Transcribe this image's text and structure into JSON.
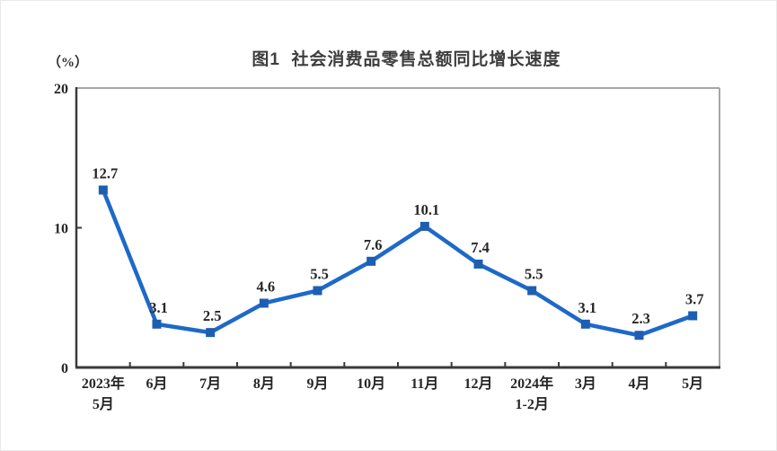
{
  "page": {
    "title": "图1  社会消费品零售总额同比增长速度",
    "unit_label": "（%）"
  },
  "chart_data": {
    "type": "line",
    "title": "图1  社会消费品零售总额同比增长速度",
    "ylabel": "（%）",
    "xlabel": "",
    "categories": [
      [
        "2023年",
        "5月"
      ],
      [
        "6月"
      ],
      [
        "7月"
      ],
      [
        "8月"
      ],
      [
        "9月"
      ],
      [
        "10月"
      ],
      [
        "11月"
      ],
      [
        "12月"
      ],
      [
        "2024年",
        "1-2月"
      ],
      [
        "3月"
      ],
      [
        "4月"
      ],
      [
        "5月"
      ]
    ],
    "series": [
      {
        "name": "社会消费品零售总额同比增长速度",
        "values": [
          12.7,
          3.1,
          2.5,
          4.6,
          5.5,
          7.6,
          10.1,
          7.4,
          5.5,
          3.1,
          2.3,
          3.7
        ],
        "data_labels": [
          "12.7",
          "3.1",
          "2.5",
          "4.6",
          "5.5",
          "7.6",
          "10.1",
          "7.4",
          "5.5",
          "3.1",
          "2.3",
          "3.7"
        ]
      }
    ],
    "ylim": [
      0,
      20
    ],
    "yticks": [
      0,
      10,
      20
    ],
    "grid": false,
    "legend_position": "none",
    "colors": {
      "line": "#1e69c8",
      "marker": "#1d5eb2",
      "axis": "#3a3a3a",
      "plot_border": "#a6a6a6",
      "label_text": "#262626"
    }
  }
}
